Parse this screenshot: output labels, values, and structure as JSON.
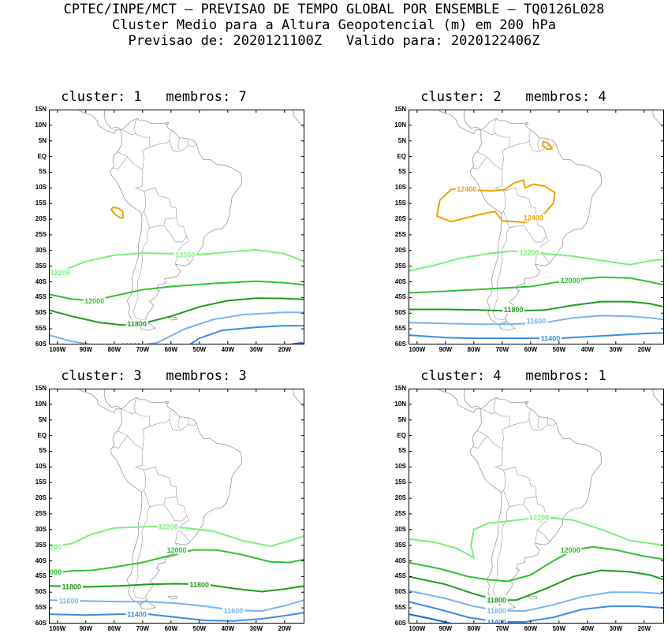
{
  "header": {
    "line1": "CPTEC/INPE/MCT — PREVISAO DE TEMPO GLOBAL POR ENSEMBLE — TQ0126L028",
    "line2": "Cluster Medio para a Altura Geopotencial (m) em 200 hPa",
    "line3": "Previsao de: 2020121100Z   Valido para: 2020122406Z"
  },
  "axes": {
    "lat_labels": [
      "15N",
      "10N",
      "5N",
      "EQ",
      "5S",
      "10S",
      "15S",
      "20S",
      "25S",
      "30S",
      "35S",
      "40S",
      "45S",
      "50S",
      "55S",
      "60S"
    ],
    "lon_labels": [
      "100W",
      "90W",
      "80W",
      "70W",
      "60W",
      "50W",
      "40W",
      "30W",
      "20W"
    ]
  },
  "colors": {
    "c12400": "#f5a000",
    "c12200": "#78f078",
    "c12000": "#33c033",
    "c11800": "#1e9b1e",
    "c11600": "#78b4f0",
    "c11400": "#3c8ce0",
    "c11200": "#1e64c8",
    "land": "#9a9a9a"
  },
  "panels": [
    {
      "title": "cluster: 1   membros: 7",
      "labels": [
        {
          "text": "12200",
          "color": "c12200"
        },
        {
          "text": "12200",
          "color": "c12200"
        },
        {
          "text": "12000",
          "color": "c12000"
        },
        {
          "text": "11800",
          "color": "c11800"
        },
        {
          "text": "11600",
          "color": "c11600"
        }
      ]
    },
    {
      "title": "cluster: 2   membros: 4",
      "labels": [
        {
          "text": "12400",
          "color": "c12400"
        },
        {
          "text": "12400",
          "color": "c12400"
        },
        {
          "text": "12200",
          "color": "c12200"
        },
        {
          "text": "12000",
          "color": "c12000"
        },
        {
          "text": "11800",
          "color": "c11800"
        },
        {
          "text": "11600",
          "color": "c11600"
        },
        {
          "text": "11400",
          "color": "c11400"
        }
      ]
    },
    {
      "title": "cluster: 3   membros: 3",
      "labels": [
        {
          "text": "12200",
          "color": "c12200"
        },
        {
          "text": "12200",
          "color": "c12200"
        },
        {
          "text": "12000",
          "color": "c12000"
        },
        {
          "text": "12000",
          "color": "c12000"
        },
        {
          "text": "11800",
          "color": "c11800"
        },
        {
          "text": "11800",
          "color": "c11800"
        },
        {
          "text": "11600",
          "color": "c11600"
        },
        {
          "text": "11600",
          "color": "c11600"
        },
        {
          "text": "11400",
          "color": "c11400"
        }
      ]
    },
    {
      "title": "cluster: 4   membros: 1",
      "labels": [
        {
          "text": "12200",
          "color": "c12200"
        },
        {
          "text": "12000",
          "color": "c12000"
        },
        {
          "text": "11800",
          "color": "c11800"
        },
        {
          "text": "11600",
          "color": "c11600"
        },
        {
          "text": "11400",
          "color": "c11400"
        }
      ]
    }
  ]
}
